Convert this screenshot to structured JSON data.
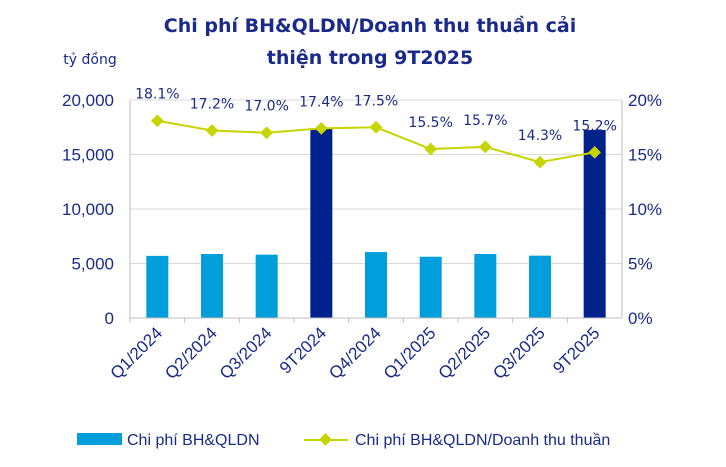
{
  "chart_data": {
    "type": "bar+line",
    "title_lines": [
      "Chi phí BH&QLDN/Doanh thu thuần cải",
      "thiện  trong 9T2025"
    ],
    "ylabel": "tỷ đồng",
    "categories": [
      "Q1/2024",
      "Q2/2024",
      "Q3/2024",
      "9T2024",
      "Q4/2024",
      "Q1/2025",
      "Q2/2025",
      "Q3/2025",
      "9T2025"
    ],
    "left_axis": {
      "min": 0,
      "max": 20000,
      "ticks": [
        0,
        5000,
        10000,
        15000,
        20000
      ],
      "tick_labels": [
        "0",
        "5,000",
        "10,000",
        "15,000",
        "20,000"
      ]
    },
    "right_axis": {
      "min": 0,
      "max": 20,
      "ticks": [
        0,
        5,
        10,
        15,
        20
      ],
      "tick_labels": [
        "0%",
        "5%",
        "10%",
        "15%",
        "20%"
      ]
    },
    "grid": true,
    "legend_position": "bottom",
    "series": [
      {
        "name": "Chi phí BH&QLDN",
        "type": "bar",
        "axis": "left",
        "values": [
          5700,
          5870,
          5810,
          17400,
          6050,
          5620,
          5870,
          5720,
          17250
        ],
        "colors": [
          "#009fdb",
          "#009fdb",
          "#009fdb",
          "#00228c",
          "#009fdb",
          "#009fdb",
          "#009fdb",
          "#009fdb",
          "#00228c"
        ]
      },
      {
        "name": "Chi phí BH&QLDN/Doanh thu thuần",
        "type": "line",
        "axis": "right",
        "values": [
          18.1,
          17.2,
          17.0,
          17.4,
          17.5,
          15.5,
          15.7,
          14.3,
          15.2
        ],
        "data_labels": [
          "18.1%",
          "17.2%",
          "17.0%",
          "17.4%",
          "17.5%",
          "15.5%",
          "15.7%",
          "14.3%",
          "15.2%"
        ],
        "color": "#c8d400"
      }
    ]
  }
}
